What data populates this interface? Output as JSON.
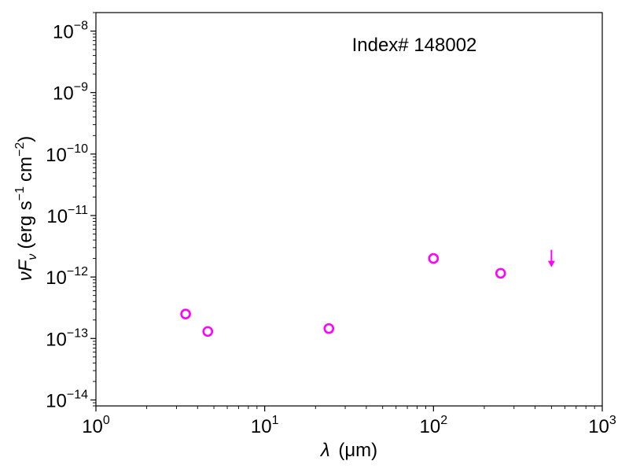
{
  "chart_data": {
    "type": "scatter",
    "title": "",
    "annotation": "Index# 148002",
    "xlabel": {
      "symbol": "λ",
      "unit": "(μm)"
    },
    "ylabel": {
      "main": "νF",
      "sub": "ν",
      "unit_open": "(erg s",
      "sup1": "−1",
      "mid": "cm",
      "sup2": "−2",
      "unit_close": ")"
    },
    "xscale": "log",
    "yscale": "log",
    "xlim": [
      1,
      1000
    ],
    "ylim": [
      8e-15,
      2e-08
    ],
    "x_ticks": [
      {
        "value": 1,
        "base": "10",
        "exp": "0"
      },
      {
        "value": 10,
        "base": "10",
        "exp": "1"
      },
      {
        "value": 100,
        "base": "10",
        "exp": "2"
      },
      {
        "value": 1000,
        "base": "10",
        "exp": "3"
      }
    ],
    "y_ticks": [
      {
        "value": 1e-14,
        "base": "10",
        "exp": "−14"
      },
      {
        "value": 1e-13,
        "base": "10",
        "exp": "−13"
      },
      {
        "value": 1e-12,
        "base": "10",
        "exp": "−12"
      },
      {
        "value": 1e-11,
        "base": "10",
        "exp": "−11"
      },
      {
        "value": 1e-10,
        "base": "10",
        "exp": "−10"
      },
      {
        "value": 1e-09,
        "base": "10",
        "exp": "−9"
      },
      {
        "value": 1e-08,
        "base": "10",
        "exp": "−8"
      }
    ],
    "grid": false,
    "color": "#ff00ff",
    "points": [
      {
        "x": 3.4,
        "y": 2.5e-13
      },
      {
        "x": 4.6,
        "y": 1.3e-13
      },
      {
        "x": 24,
        "y": 1.45e-13
      },
      {
        "x": 100,
        "y": 2e-12
      },
      {
        "x": 250,
        "y": 1.15e-12
      }
    ],
    "upper_limits": [
      {
        "x": 500,
        "y": 2e-12
      }
    ]
  }
}
